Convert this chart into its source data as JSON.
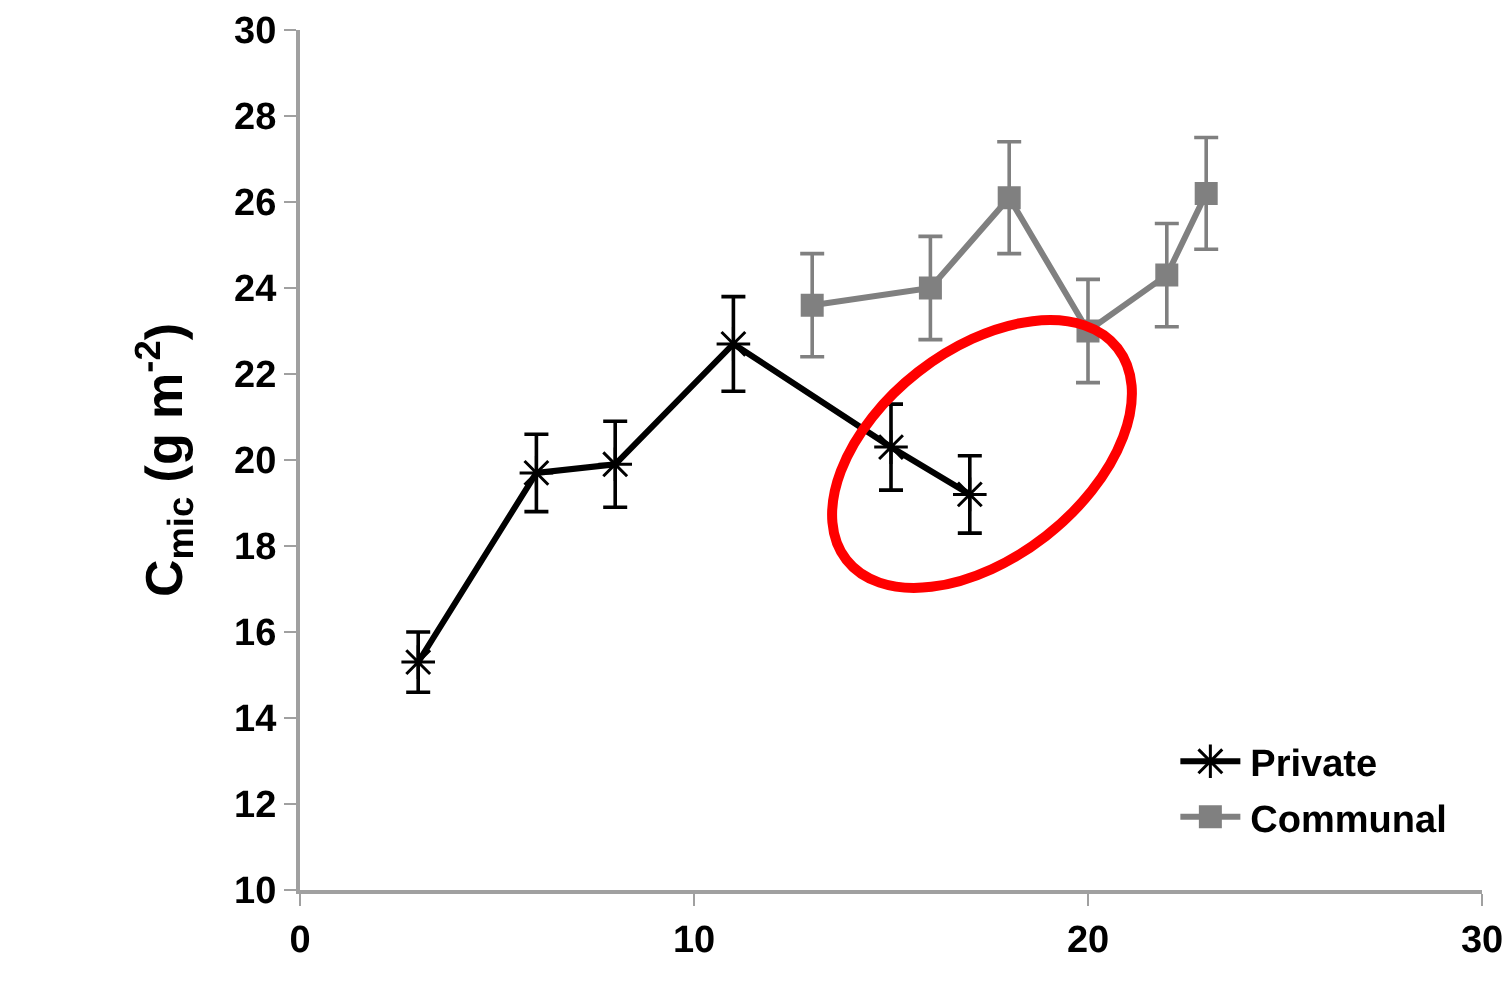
{
  "chart_data": {
    "type": "line",
    "ylabel": "C$_{mic}$ (g m$^{-2}$)",
    "xlim": [
      0,
      30
    ],
    "xticks": [
      0,
      10,
      20,
      30
    ],
    "ylim": [
      10,
      30
    ],
    "yticks": [
      10,
      12,
      14,
      16,
      18,
      20,
      22,
      24,
      26,
      28,
      30
    ],
    "grid": false,
    "legend": "bottom right",
    "series": [
      {
        "name": "Private",
        "color": "#000000",
        "marker": "cross",
        "x": [
          3,
          6,
          8,
          11,
          15,
          17
        ],
        "values": [
          15.3,
          19.7,
          19.9,
          22.7,
          20.3,
          19.2
        ],
        "errors": [
          0.7,
          0.9,
          1.0,
          1.1,
          1.0,
          0.9
        ]
      },
      {
        "name": "Communal",
        "color": "#808080",
        "marker": "square",
        "x": [
          13,
          16,
          18,
          20,
          22,
          23
        ],
        "values": [
          23.6,
          24.0,
          26.1,
          23.0,
          24.3,
          26.2
        ],
        "errors": [
          1.2,
          1.2,
          1.3,
          1.2,
          1.2,
          1.3
        ]
      }
    ]
  }
}
